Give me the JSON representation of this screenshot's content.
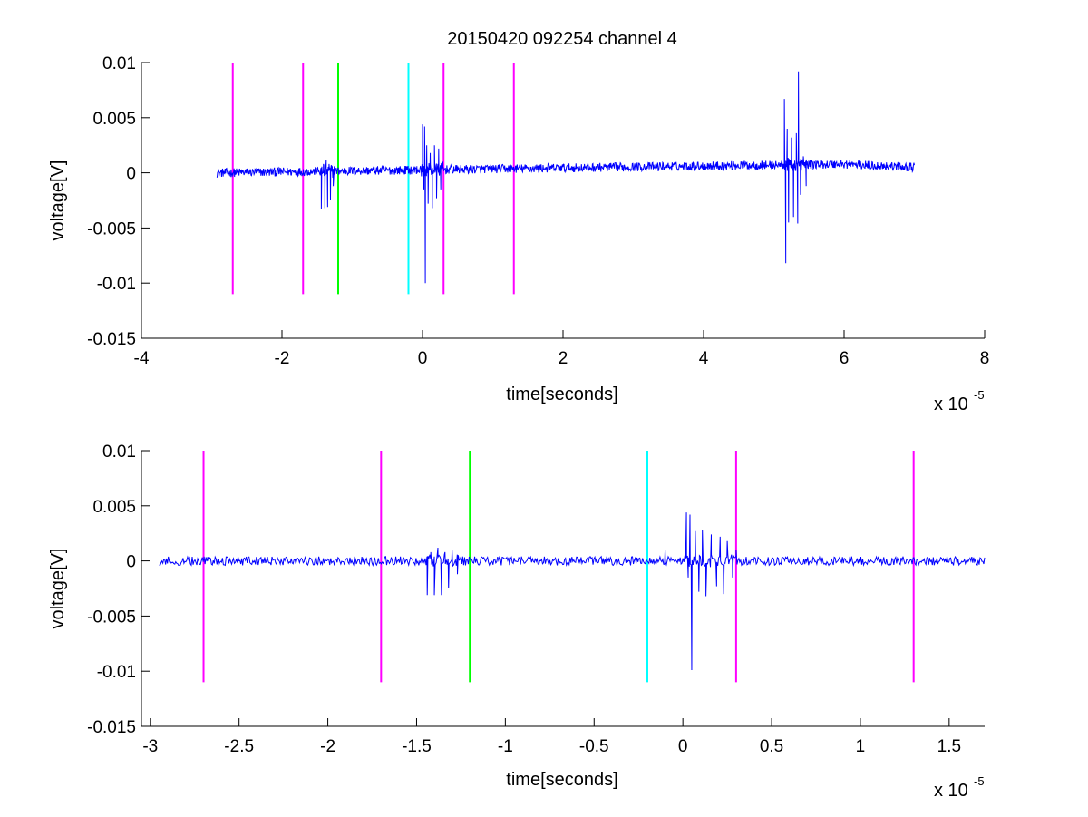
{
  "chart_data": [
    {
      "type": "line",
      "title": "20150420 092254 channel 4",
      "xlabel": "time[seconds]",
      "ylabel": "voltage[V]",
      "xlim": [
        -4,
        8
      ],
      "ylim": [
        -0.015,
        0.01
      ],
      "x_exponent_label": "x 10",
      "x_exponent_power": "-5",
      "x_ticks": [
        -4,
        -2,
        0,
        2,
        4,
        6,
        8
      ],
      "x_tick_labels": [
        "-4",
        "-2",
        "0",
        "2",
        "4",
        "6",
        "8"
      ],
      "y_ticks": [
        -0.015,
        -0.01,
        -0.005,
        0,
        0.005,
        0.01
      ],
      "y_tick_labels": [
        "-0.015",
        "-0.01",
        "-0.005",
        "0",
        "0.005",
        "0.01"
      ],
      "grid": false,
      "markers": [
        {
          "x": -2.7,
          "color": "#ff00ff",
          "y_range": [
            -0.011,
            0.01
          ]
        },
        {
          "x": -1.7,
          "color": "#ff00ff",
          "y_range": [
            -0.011,
            0.01
          ]
        },
        {
          "x": -1.2,
          "color": "#00ff00",
          "y_range": [
            -0.011,
            0.01
          ]
        },
        {
          "x": -0.2,
          "color": "#00ffff",
          "y_range": [
            -0.011,
            0.01
          ]
        },
        {
          "x": 0.3,
          "color": "#ff00ff",
          "y_range": [
            -0.011,
            0.01
          ]
        },
        {
          "x": 1.3,
          "color": "#ff00ff",
          "y_range": [
            -0.011,
            0.01
          ]
        }
      ],
      "series": [
        {
          "color": "#0000ff",
          "x_range": [
            -2.93,
            7.0
          ],
          "baseline_segments": [
            [
              -2.93,
              0.0
            ],
            [
              5.95,
              0.0008
            ],
            [
              7.0,
              0.0005
            ]
          ],
          "noise_amplitude": 0.0004,
          "bursts": [
            {
              "x": -1.35,
              "peaks": [
                [
                  -1.44,
                  -0.0033
                ],
                [
                  -1.41,
                  0.0008
                ],
                [
                  -1.39,
                  -0.0032
                ],
                [
                  -1.37,
                  0.0012
                ],
                [
                  -1.35,
                  -0.0031
                ],
                [
                  -1.33,
                  0.0008
                ],
                [
                  -1.31,
                  -0.0025
                ],
                [
                  -1.29,
                  0.0006
                ],
                [
                  -1.27,
                  -0.0012
                ]
              ]
            },
            {
              "x": 0.05,
              "peaks": [
                [
                  -0.08,
                  0.0006
                ],
                [
                  0.0,
                  0.0044
                ],
                [
                  0.02,
                  -0.0015
                ],
                [
                  0.03,
                  0.0042
                ],
                [
                  0.04,
                  -0.01
                ],
                [
                  0.06,
                  0.0025
                ],
                [
                  0.08,
                  -0.0028
                ],
                [
                  0.11,
                  0.0018
                ],
                [
                  0.14,
                  -0.0032
                ],
                [
                  0.17,
                  0.0025
                ],
                [
                  0.2,
                  -0.0023
                ],
                [
                  0.23,
                  0.0022
                ],
                [
                  0.26,
                  -0.0015
                ],
                [
                  0.29,
                  0.001
                ]
              ]
            },
            {
              "x": 5.25,
              "peaks": [
                [
                  5.15,
                  0.0067
                ],
                [
                  5.17,
                  -0.0082
                ],
                [
                  5.19,
                  0.004
                ],
                [
                  5.21,
                  -0.0045
                ],
                [
                  5.25,
                  0.0032
                ],
                [
                  5.28,
                  -0.004
                ],
                [
                  5.32,
                  0.0036
                ],
                [
                  5.34,
                  -0.0046
                ],
                [
                  5.35,
                  0.0092
                ],
                [
                  5.38,
                  -0.002
                ],
                [
                  5.42,
                  0.0015
                ],
                [
                  5.46,
                  -0.0012
                ]
              ]
            }
          ]
        }
      ]
    },
    {
      "type": "line",
      "title": "",
      "xlabel": "time[seconds]",
      "ylabel": "voltage[V]",
      "xlim": [
        -3.05,
        1.7
      ],
      "ylim": [
        -0.015,
        0.01
      ],
      "x_exponent_label": "x 10",
      "x_exponent_power": "-5",
      "x_ticks": [
        -3,
        -2.5,
        -2,
        -1.5,
        -1,
        -0.5,
        0,
        0.5,
        1,
        1.5
      ],
      "x_tick_labels": [
        "-3",
        "-2.5",
        "-2",
        "-1.5",
        "-1",
        "-0.5",
        "0",
        "0.5",
        "1",
        "1.5"
      ],
      "y_ticks": [
        -0.015,
        -0.01,
        -0.005,
        0,
        0.005,
        0.01
      ],
      "y_tick_labels": [
        "-0.015",
        "-0.01",
        "-0.005",
        "0",
        "0.005",
        "0.01"
      ],
      "grid": false,
      "markers": [
        {
          "x": -2.7,
          "color": "#ff00ff",
          "y_range": [
            -0.011,
            0.01
          ]
        },
        {
          "x": -1.7,
          "color": "#ff00ff",
          "y_range": [
            -0.011,
            0.01
          ]
        },
        {
          "x": -1.2,
          "color": "#00ff00",
          "y_range": [
            -0.011,
            0.01
          ]
        },
        {
          "x": -0.2,
          "color": "#00ffff",
          "y_range": [
            -0.011,
            0.01
          ]
        },
        {
          "x": 0.3,
          "color": "#ff00ff",
          "y_range": [
            -0.011,
            0.01
          ]
        },
        {
          "x": 1.3,
          "color": "#ff00ff",
          "y_range": [
            -0.011,
            0.01
          ]
        }
      ],
      "series": [
        {
          "color": "#0000ff",
          "x_range": [
            -2.95,
            1.7
          ],
          "baseline_segments": [
            [
              -2.95,
              0.0
            ],
            [
              1.7,
              0.0
            ]
          ],
          "noise_amplitude": 0.0004,
          "bursts": [
            {
              "x": -1.35,
              "peaks": [
                [
                  -1.44,
                  -0.0031
                ],
                [
                  -1.42,
                  0.0008
                ],
                [
                  -1.4,
                  -0.0031
                ],
                [
                  -1.38,
                  0.0012
                ],
                [
                  -1.36,
                  -0.0031
                ],
                [
                  -1.34,
                  0.0008
                ],
                [
                  -1.32,
                  -0.0025
                ],
                [
                  -1.3,
                  0.001
                ],
                [
                  -1.27,
                  -0.0012
                ],
                [
                  -1.24,
                  0.0004
                ]
              ]
            },
            {
              "x": 0.05,
              "peaks": [
                [
                  -0.1,
                  0.001
                ],
                [
                  0.02,
                  0.0044
                ],
                [
                  0.03,
                  -0.0015
                ],
                [
                  0.04,
                  0.0042
                ],
                [
                  0.05,
                  -0.0099
                ],
                [
                  0.07,
                  0.0027
                ],
                [
                  0.09,
                  -0.0028
                ],
                [
                  0.11,
                  0.0028
                ],
                [
                  0.13,
                  -0.0032
                ],
                [
                  0.16,
                  0.0024
                ],
                [
                  0.19,
                  -0.0023
                ],
                [
                  0.21,
                  0.0022
                ],
                [
                  0.23,
                  -0.003
                ],
                [
                  0.25,
                  0.0018
                ],
                [
                  0.28,
                  -0.0015
                ],
                [
                  0.3,
                  0.001
                ]
              ]
            }
          ]
        }
      ]
    }
  ]
}
